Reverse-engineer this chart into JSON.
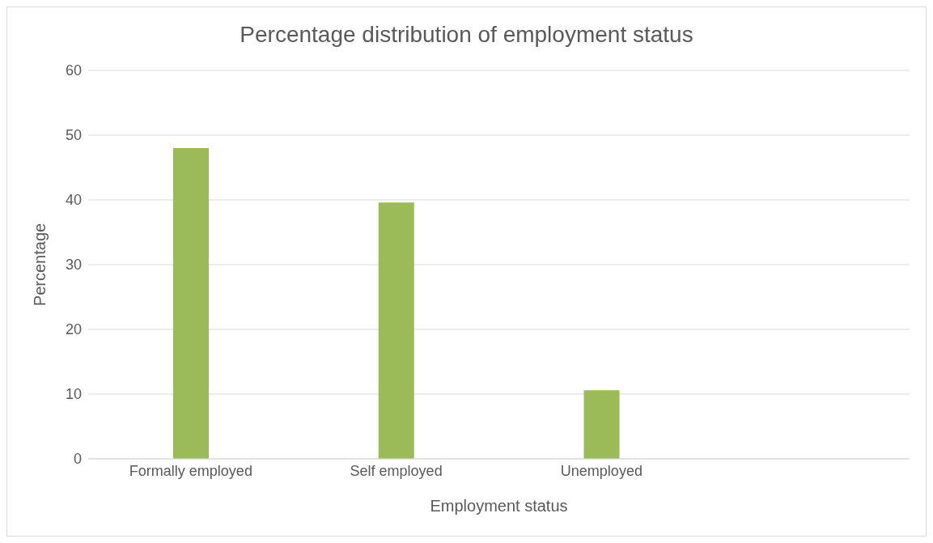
{
  "chart_data": {
    "type": "bar",
    "title": "Percentage distribution of employment status",
    "xlabel": "Employment status",
    "ylabel": "Percentage",
    "categories": [
      "Formally employed",
      "Self employed",
      "Unemployed",
      null
    ],
    "values": [
      48,
      39.6,
      10.6,
      null
    ],
    "color": "#9bbb59",
    "ylim": [
      0,
      60
    ],
    "yticks": [
      0,
      10,
      20,
      30,
      40,
      50,
      60
    ],
    "grid": "y"
  }
}
